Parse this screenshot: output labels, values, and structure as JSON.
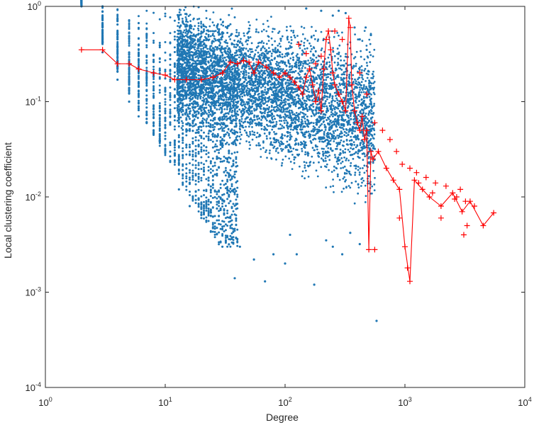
{
  "chart_data": {
    "type": "scatter",
    "title": "",
    "xlabel": "Degree",
    "ylabel": "Local clustering coefficient",
    "xscale": "log",
    "yscale": "log",
    "xlim": [
      1,
      10000
    ],
    "ylim": [
      0.0001,
      1
    ],
    "grid": false,
    "legend": "none",
    "x_ticks": [
      {
        "base": "10",
        "exp": "0",
        "value": 1
      },
      {
        "base": "10",
        "exp": "1",
        "value": 10
      },
      {
        "base": "10",
        "exp": "2",
        "value": 100
      },
      {
        "base": "10",
        "exp": "3",
        "value": 1000
      },
      {
        "base": "10",
        "exp": "4",
        "value": 10000
      }
    ],
    "y_ticks": [
      {
        "base": "10",
        "exp": "0",
        "value": 1
      },
      {
        "base": "10",
        "exp": "-1",
        "value": 0.1
      },
      {
        "base": "10",
        "exp": "-2",
        "value": 0.01
      },
      {
        "base": "10",
        "exp": "-3",
        "value": 0.001
      },
      {
        "base": "10",
        "exp": "-4",
        "value": 0.0001
      }
    ],
    "series": [
      {
        "kind": "scatter",
        "color": "#1f77b4",
        "points": [
          [
            2,
            1
          ],
          [
            3,
            1
          ],
          [
            3,
            0.33
          ],
          [
            4,
            0.17
          ],
          [
            5,
            0.1
          ],
          [
            6,
            0.07
          ],
          [
            13,
            0.012
          ],
          [
            16,
            0.008
          ],
          [
            20,
            0.006
          ],
          [
            24,
            0.0043
          ],
          [
            30,
            0.003
          ],
          [
            38,
            0.0014
          ],
          [
            42,
            0.003
          ],
          [
            55,
            0.0022
          ],
          [
            68,
            0.0013
          ],
          [
            80,
            0.0025
          ],
          [
            100,
            0.002
          ],
          [
            110,
            0.004
          ],
          [
            125,
            0.0025
          ],
          [
            175,
            0.0012
          ],
          [
            220,
            0.0035
          ],
          [
            250,
            0.003
          ],
          [
            300,
            0.0025
          ],
          [
            350,
            0.0042
          ],
          [
            420,
            0.0032
          ],
          [
            580,
            0.0005
          ],
          [
            280,
            0.9
          ],
          [
            320,
            0.85
          ],
          [
            380,
            0.6
          ],
          [
            420,
            0.45
          ],
          [
            470,
            0.6
          ],
          [
            480,
            0.35
          ],
          [
            520,
            0.5
          ],
          [
            150,
            0.95
          ],
          [
            200,
            0.9
          ],
          [
            250,
            0.8
          ]
        ]
      },
      {
        "kind": "line",
        "color": "#ff0000",
        "points": [
          [
            2,
            0.35
          ],
          [
            3,
            0.35
          ],
          [
            4,
            0.25
          ],
          [
            5,
            0.25
          ],
          [
            6,
            0.22
          ],
          [
            8,
            0.2
          ],
          [
            10,
            0.19
          ],
          [
            12,
            0.17
          ],
          [
            15,
            0.17
          ],
          [
            20,
            0.17
          ],
          [
            25,
            0.18
          ],
          [
            30,
            0.2
          ],
          [
            35,
            0.26
          ],
          [
            40,
            0.25
          ],
          [
            45,
            0.27
          ],
          [
            50,
            0.26
          ],
          [
            55,
            0.2
          ],
          [
            60,
            0.26
          ],
          [
            70,
            0.23
          ],
          [
            80,
            0.2
          ],
          [
            90,
            0.18
          ],
          [
            100,
            0.2
          ],
          [
            110,
            0.18
          ],
          [
            120,
            0.16
          ],
          [
            130,
            0.14
          ],
          [
            140,
            0.12
          ],
          [
            150,
            0.18
          ],
          [
            160,
            0.22
          ],
          [
            170,
            0.15
          ],
          [
            180,
            0.1
          ],
          [
            190,
            0.13
          ],
          [
            200,
            0.08
          ],
          [
            210,
            0.22
          ],
          [
            220,
            0.45
          ],
          [
            230,
            0.55
          ],
          [
            240,
            0.35
          ],
          [
            250,
            0.2
          ],
          [
            260,
            0.15
          ],
          [
            280,
            0.12
          ],
          [
            300,
            0.1
          ],
          [
            320,
            0.08
          ],
          [
            340,
            0.75
          ],
          [
            350,
            0.6
          ],
          [
            360,
            0.15
          ],
          [
            380,
            0.08
          ],
          [
            400,
            0.06
          ],
          [
            420,
            0.05
          ],
          [
            440,
            0.07
          ],
          [
            460,
            0.04
          ],
          [
            480,
            0.05
          ],
          [
            500,
            0.0028
          ],
          [
            520,
            0.03
          ],
          [
            540,
            0.025
          ],
          [
            600,
            0.03
          ],
          [
            700,
            0.02
          ],
          [
            800,
            0.015
          ],
          [
            900,
            0.012
          ],
          [
            1000,
            0.003
          ],
          [
            1100,
            0.0013
          ],
          [
            1200,
            0.015
          ],
          [
            1400,
            0.012
          ],
          [
            1600,
            0.01
          ],
          [
            2000,
            0.008
          ],
          [
            2500,
            0.011
          ],
          [
            3000,
            0.007
          ],
          [
            3500,
            0.009
          ],
          [
            4500,
            0.005
          ],
          [
            5500,
            0.0068
          ]
        ],
        "extra_markers": [
          [
            130,
            0.4
          ],
          [
            150,
            0.32
          ],
          [
            180,
            0.25
          ],
          [
            200,
            0.3
          ],
          [
            260,
            0.55
          ],
          [
            300,
            0.45
          ],
          [
            420,
            0.2
          ],
          [
            480,
            0.12
          ],
          [
            560,
            0.06
          ],
          [
            650,
            0.05
          ],
          [
            750,
            0.04
          ],
          [
            850,
            0.03
          ],
          [
            950,
            0.022
          ],
          [
            1100,
            0.02
          ],
          [
            1250,
            0.018
          ],
          [
            1500,
            0.016
          ],
          [
            1800,
            0.014
          ],
          [
            2200,
            0.013
          ],
          [
            2700,
            0.01
          ],
          [
            3200,
            0.009
          ],
          [
            3800,
            0.008
          ],
          [
            900,
            0.006
          ],
          [
            560,
            0.0028
          ],
          [
            1050,
            0.0018
          ],
          [
            3300,
            0.005
          ],
          [
            3100,
            0.004
          ],
          [
            2000,
            0.006
          ],
          [
            2600,
            0.0095
          ],
          [
            1700,
            0.011
          ],
          [
            1300,
            0.014
          ],
          [
            2900,
            0.012
          ]
        ]
      }
    ]
  }
}
